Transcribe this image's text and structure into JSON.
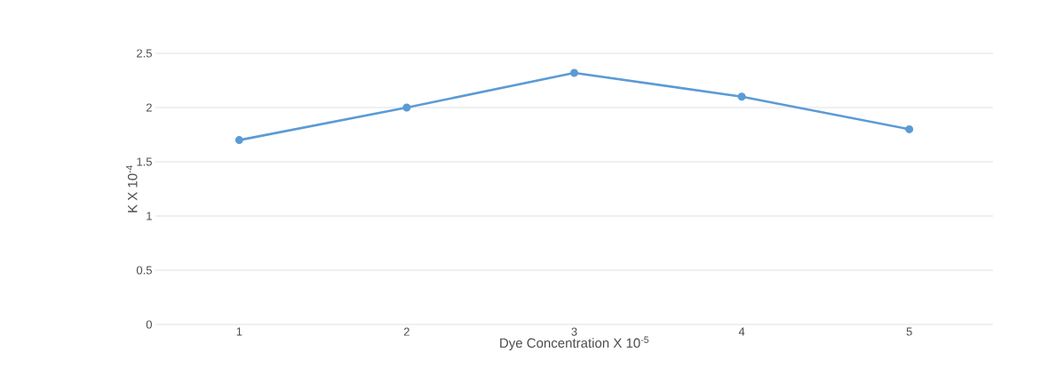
{
  "chart_data": {
    "type": "line",
    "xlabel": "Dye Concentration X 10$^{-5}$",
    "ylabel": "K X 10$^{-4}$",
    "categories": [
      "1",
      "2",
      "3",
      "4",
      "5"
    ],
    "series": [
      {
        "color": "#5b9bd5",
        "values": [
          1.7,
          2.0,
          2.32,
          2.1,
          1.8
        ]
      }
    ],
    "ylim": [
      0,
      2.5
    ],
    "yticks": [
      0,
      0.5,
      1,
      1.5,
      2,
      2.5
    ],
    "grid": "y",
    "marker": "circle",
    "line_style": "solid"
  }
}
